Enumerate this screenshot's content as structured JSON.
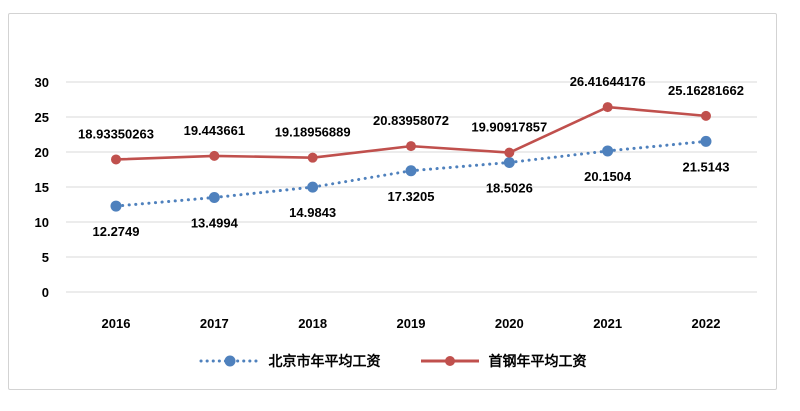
{
  "chart_data": {
    "type": "line",
    "categories": [
      "2016",
      "2017",
      "2018",
      "2019",
      "2020",
      "2021",
      "2022"
    ],
    "series": [
      {
        "name": "北京市年平均工资",
        "color": "#4f81bd",
        "line_style": "dotted",
        "label_position": "below",
        "values": [
          12.2749,
          13.4994,
          14.9843,
          17.3205,
          18.5026,
          20.1504,
          21.5143
        ],
        "labels": [
          "12.2749",
          "13.4994",
          "14.9843",
          "17.3205",
          "18.5026",
          "20.1504",
          "21.5143"
        ]
      },
      {
        "name": "首钢年平均工资",
        "color": "#c0504d",
        "line_style": "solid",
        "label_position": "above",
        "values": [
          18.93350263,
          19.443661,
          19.18956889,
          20.83958072,
          19.90917857,
          26.41644176,
          25.16281662
        ],
        "labels": [
          "18.93350263",
          "19.443661",
          "19.18956889",
          "20.83958072",
          "19.90917857",
          "26.41644176",
          "25.16281662"
        ]
      }
    ],
    "y_ticks": [
      0,
      5,
      10,
      15,
      20,
      25,
      30
    ],
    "ylim": [
      0,
      30
    ],
    "title": "",
    "xlabel": "",
    "ylabel": "",
    "grid": true,
    "legend_position": "bottom",
    "gridline_color": "#d9d9d9",
    "frame_border_color": "#d3d3d3"
  }
}
